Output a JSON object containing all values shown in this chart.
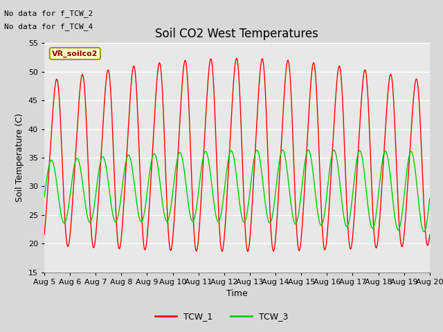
{
  "title": "Soil CO2 West Temperatures",
  "xlabel": "Time",
  "ylabel": "Soil Temperature (C)",
  "ylim": [
    15,
    55
  ],
  "x_tick_labels": [
    "Aug 5",
    "Aug 6",
    "Aug 7",
    "Aug 8",
    "Aug 9",
    "Aug 10",
    "Aug 11",
    "Aug 12",
    "Aug 13",
    "Aug 14",
    "Aug 15",
    "Aug 16",
    "Aug 17",
    "Aug 18",
    "Aug 19",
    "Aug 20"
  ],
  "x_tick_positions": [
    0,
    1,
    2,
    3,
    4,
    5,
    6,
    7,
    8,
    9,
    10,
    11,
    12,
    13,
    14,
    15
  ],
  "tcw1_color": "#ff0000",
  "tcw3_color": "#00cc00",
  "tcw1_label": "TCW_1",
  "tcw3_label": "TCW_3",
  "no_data_text1": "No data for f_TCW_2",
  "no_data_text2": "No data for f_TCW_4",
  "annotation_text": "VR_soilco2",
  "bg_color": "#e8e8e8",
  "grid_color": "#ffffff",
  "title_fontsize": 12,
  "label_fontsize": 9,
  "tick_fontsize": 8,
  "legend_fontsize": 9
}
